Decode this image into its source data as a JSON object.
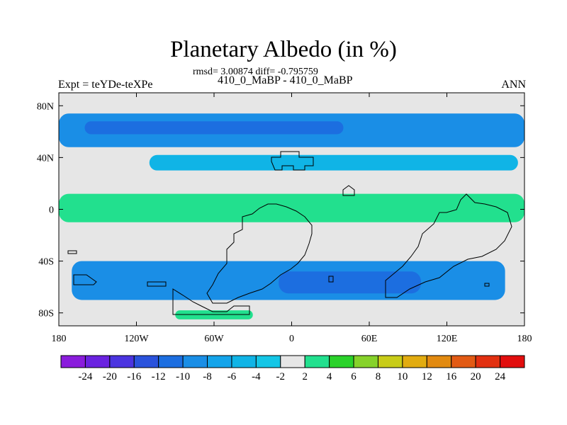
{
  "header": {
    "title": "Planetary Albedo (in %)",
    "stats": "rmsd= 3.00874 diff= -0.795759",
    "runs": "410_0_MaBP - 410_0_MaBP",
    "experiment": "Expt = teYDe-teXPe",
    "season": "ANN"
  },
  "chart_data": {
    "type": "heatmap",
    "title": "Planetary Albedo (in %)",
    "subtitle": "410_0_MaBP - 410_0_MaBP",
    "lon_range": [
      -180,
      180
    ],
    "lat_range": [
      -90,
      90
    ],
    "x_ticks": [
      {
        "value": -180,
        "label": "180"
      },
      {
        "value": -120,
        "label": "120W"
      },
      {
        "value": -60,
        "label": "60W"
      },
      {
        "value": 0,
        "label": "0"
      },
      {
        "value": 60,
        "label": "60E"
      },
      {
        "value": 120,
        "label": "120E"
      },
      {
        "value": 180,
        "label": "180"
      }
    ],
    "y_ticks": [
      {
        "value": 80,
        "label": "80N"
      },
      {
        "value": 40,
        "label": "40N"
      },
      {
        "value": 0,
        "label": "0"
      },
      {
        "value": -40,
        "label": "40S"
      },
      {
        "value": -80,
        "label": "80S"
      }
    ],
    "colorbar": {
      "levels": [
        -24,
        -20,
        -16,
        -12,
        -10,
        -8,
        -6,
        -4,
        -2,
        2,
        4,
        6,
        8,
        10,
        12,
        16,
        20,
        24
      ],
      "colors": [
        "#8a1cdc",
        "#6a22e0",
        "#4b34e0",
        "#2a52dc",
        "#1c6ee0",
        "#1a8ee6",
        "#14a4ea",
        "#10b4e6",
        "#14c6e6",
        "#e6e6e6",
        "#22e08e",
        "#2ad22a",
        "#86d22a",
        "#c8cc18",
        "#e2ac10",
        "#e28a10",
        "#e25a14",
        "#e23010",
        "#e20e0e"
      ]
    },
    "regions": [
      {
        "label": "-8",
        "color": "#1a8ee6",
        "lat_range": [
          48,
          74
        ],
        "lon_range": [
          -180,
          180
        ]
      },
      {
        "label": "-10",
        "color": "#1c6ee0",
        "lat_range": [
          58,
          68
        ],
        "lon_range": [
          -160,
          40
        ]
      },
      {
        "label": "-4",
        "color": "#10b4e6",
        "lat_range": [
          30,
          42
        ],
        "lon_range": [
          -110,
          175
        ]
      },
      {
        "label": "4",
        "color": "#22e08e",
        "lat_range": [
          -10,
          12
        ],
        "lon_range": [
          -180,
          180
        ]
      },
      {
        "label": "-8",
        "color": "#1a8ee6",
        "lat_range": [
          -70,
          -40
        ],
        "lon_range": [
          -170,
          165
        ]
      },
      {
        "label": "-10",
        "color": "#1c6ee0",
        "lat_range": [
          -65,
          -48
        ],
        "lon_range": [
          -10,
          100
        ]
      },
      {
        "label": "4",
        "color": "#22e08e",
        "lat_range": [
          -85,
          -78
        ],
        "lon_range": [
          -90,
          -30
        ]
      }
    ]
  }
}
